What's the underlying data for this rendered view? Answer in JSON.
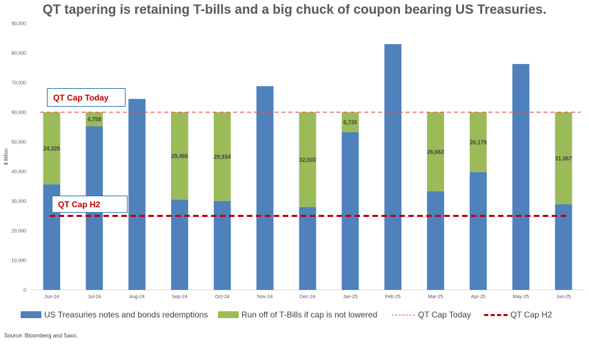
{
  "chart_data": {
    "type": "bar",
    "stacked": true,
    "title": "QT tapering is retaining T-bills and a big chuck of coupon bearing US Treasuries.",
    "ylabel": "$ Billion",
    "ylim": [
      0,
      90000
    ],
    "yticks": [
      "0",
      "10,000",
      "20,000",
      "30,000",
      "40,000",
      "50,000",
      "60,000",
      "70,000",
      "80,000",
      "90,000"
    ],
    "yticks_values": [
      0,
      10000,
      20000,
      30000,
      40000,
      50000,
      60000,
      70000,
      80000,
      90000
    ],
    "grid": false,
    "legend_position": "bottom",
    "categories": [
      "Jun-24",
      "Jul-24",
      "Aug-24",
      "Sep-24",
      "Oct-24",
      "Nov-24",
      "Dec-24",
      "Jan-25",
      "Feb-25",
      "Mar-25",
      "Apr-25",
      "May-25",
      "Jun-25"
    ],
    "series": [
      {
        "name": "US Treasuries notes and bonds redemptions",
        "color": "#4f81bd",
        "values": [
          35675,
          55242,
          64500,
          30534,
          30066,
          68800,
          27997,
          53265,
          83000,
          33338,
          39821,
          76300,
          28933
        ]
      },
      {
        "name": "Run off of T-Bills if cap is not lowered",
        "color": "#9bbb59",
        "values": [
          24325,
          4758,
          0,
          29466,
          29934,
          0,
          32003,
          6735,
          0,
          26662,
          20179,
          0,
          31067
        ],
        "labels": [
          "24,325",
          "4,758",
          "",
          "29,466",
          "29,934",
          "",
          "32,003",
          "6,735",
          "",
          "26,662",
          "20,179",
          "",
          "31,067"
        ]
      }
    ],
    "lines": [
      {
        "name": "QT Cap Today",
        "value": 60000,
        "color": "#d9534f",
        "style": "dashed-thin"
      },
      {
        "name": "QT Cap H2",
        "value": 25000,
        "color": "#c00000",
        "style": "dashed-thick"
      }
    ],
    "annotations": [
      {
        "text": "QT Cap Today",
        "target": "QT Cap Today"
      },
      {
        "text": "QT Cap H2",
        "target": "QT Cap H2"
      }
    ],
    "source": "Source: Bloomberg and Saxo."
  }
}
